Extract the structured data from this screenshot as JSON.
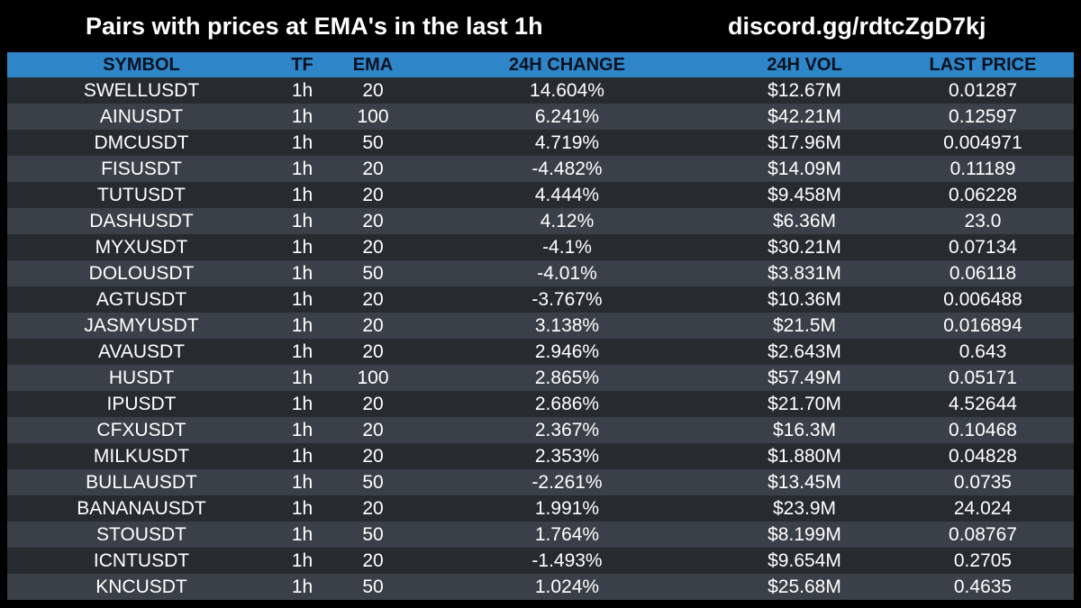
{
  "title": {
    "left": "Pairs with prices at EMA's in the last 1h",
    "right": "discord.gg/rdtcZgD7kj"
  },
  "colors": {
    "header_bg": "#2e86c8",
    "row_dark": "#262b30",
    "row_light": "#3a4048",
    "background": "#000000"
  },
  "columns": [
    "SYMBOL",
    "TF",
    "EMA",
    "24H CHANGE",
    "24H VOL",
    "LAST PRICE"
  ],
  "rows": [
    [
      "SWELLUSDT",
      "1h",
      "20",
      "14.604%",
      "$12.67M",
      "0.01287"
    ],
    [
      "AINUSDT",
      "1h",
      "100",
      "6.241%",
      "$42.21M",
      "0.12597"
    ],
    [
      "DMCUSDT",
      "1h",
      "50",
      "4.719%",
      "$17.96M",
      "0.004971"
    ],
    [
      "FISUSDT",
      "1h",
      "20",
      "-4.482%",
      "$14.09M",
      "0.11189"
    ],
    [
      "TUTUSDT",
      "1h",
      "20",
      "4.444%",
      "$9.458M",
      "0.06228"
    ],
    [
      "DASHUSDT",
      "1h",
      "20",
      "4.12%",
      "$6.36M",
      "23.0"
    ],
    [
      "MYXUSDT",
      "1h",
      "20",
      "-4.1%",
      "$30.21M",
      "0.07134"
    ],
    [
      "DOLOUSDT",
      "1h",
      "50",
      "-4.01%",
      "$3.831M",
      "0.06118"
    ],
    [
      "AGTUSDT",
      "1h",
      "20",
      "-3.767%",
      "$10.36M",
      "0.006488"
    ],
    [
      "JASMYUSDT",
      "1h",
      "20",
      "3.138%",
      "$21.5M",
      "0.016894"
    ],
    [
      "AVAUSDT",
      "1h",
      "20",
      "2.946%",
      "$2.643M",
      "0.643"
    ],
    [
      "HUSDT",
      "1h",
      "100",
      "2.865%",
      "$57.49M",
      "0.05171"
    ],
    [
      "IPUSDT",
      "1h",
      "20",
      "2.686%",
      "$21.70M",
      "4.52644"
    ],
    [
      "CFXUSDT",
      "1h",
      "20",
      "2.367%",
      "$16.3M",
      "0.10468"
    ],
    [
      "MILKUSDT",
      "1h",
      "20",
      "2.353%",
      "$1.880M",
      "0.04828"
    ],
    [
      "BULLAUSDT",
      "1h",
      "50",
      "-2.261%",
      "$13.45M",
      "0.0735"
    ],
    [
      "BANANAUSDT",
      "1h",
      "20",
      "1.991%",
      "$23.9M",
      "24.024"
    ],
    [
      "STOUSDT",
      "1h",
      "50",
      "1.764%",
      "$8.199M",
      "0.08767"
    ],
    [
      "ICNTUSDT",
      "1h",
      "20",
      "-1.493%",
      "$9.654M",
      "0.2705"
    ],
    [
      "KNCUSDT",
      "1h",
      "50",
      "1.024%",
      "$25.68M",
      "0.4635"
    ]
  ]
}
